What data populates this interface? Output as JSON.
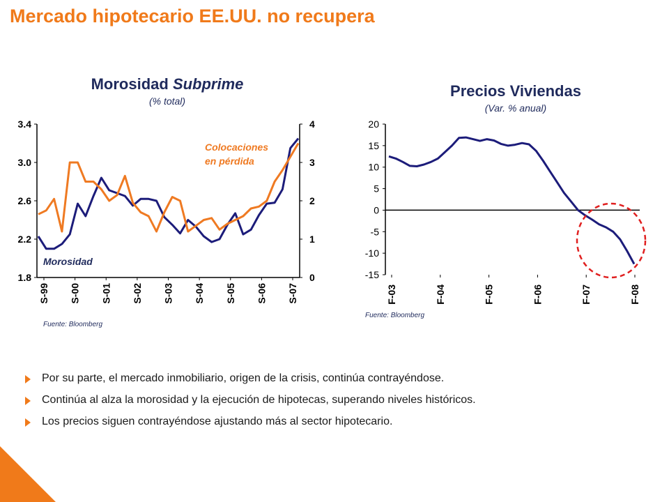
{
  "page": {
    "title": "Mercado hipotecario EE.UU. no recupera"
  },
  "colors": {
    "title": "#f07a1a",
    "navy": "#1f2a5c",
    "line_navy": "#1c1c7a",
    "line_orange": "#ef7a22",
    "circle": "#e02020"
  },
  "chart_data": [
    {
      "type": "line",
      "title": "Morosidad Subprime",
      "subtitle": "(% total)",
      "source": "Fuente: Bloomberg",
      "x_tick_labels": [
        "S-99",
        "S-00",
        "S-01",
        "S-02",
        "S-03",
        "S-04",
        "S-05",
        "S-06",
        "S-07"
      ],
      "y_left": {
        "ticks": [
          "1.8",
          "2.2",
          "2.6",
          "3.0",
          "3.4"
        ],
        "lim": [
          1.8,
          3.4
        ]
      },
      "y_right": {
        "ticks": [
          "0",
          "1",
          "2",
          "3",
          "4"
        ],
        "lim": [
          0,
          4
        ]
      },
      "annotations": {
        "morosidad": "Morosidad",
        "colocaciones_line1": "Colocaciones",
        "colocaciones_line2": "en pérdida"
      },
      "series": [
        {
          "name": "Morosidad",
          "axis": "left",
          "color": "#1c1c7a",
          "values": [
            2.23,
            2.1,
            2.1,
            2.15,
            2.25,
            2.57,
            2.44,
            2.65,
            2.84,
            2.71,
            2.68,
            2.65,
            2.55,
            2.62,
            2.62,
            2.6,
            2.43,
            2.35,
            2.26,
            2.4,
            2.33,
            2.23,
            2.17,
            2.2,
            2.35,
            2.47,
            2.25,
            2.3,
            2.45,
            2.57,
            2.58,
            2.72,
            3.15,
            3.25
          ]
        },
        {
          "name": "Colocaciones en pérdida",
          "axis": "right",
          "color": "#ef7a22",
          "values": [
            1.65,
            1.75,
            2.05,
            1.2,
            3.0,
            3.0,
            2.5,
            2.5,
            2.3,
            2.0,
            2.15,
            2.65,
            1.95,
            1.7,
            1.6,
            1.2,
            1.7,
            2.1,
            2.0,
            1.2,
            1.35,
            1.5,
            1.55,
            1.25,
            1.4,
            1.5,
            1.6,
            1.8,
            1.85,
            2.0,
            2.5,
            2.8,
            3.15,
            3.5
          ]
        }
      ]
    },
    {
      "type": "line",
      "title": "Precios Viviendas",
      "subtitle": "(Var. % anual)",
      "source": "Fuente: Bloomberg",
      "x_tick_labels": [
        "F-03",
        "F-04",
        "F-05",
        "F-06",
        "F-07",
        "F-08"
      ],
      "y": {
        "ticks": [
          "20",
          "15",
          "10",
          "5",
          "0",
          "-5",
          "-10",
          "-15"
        ],
        "lim": [
          -15,
          20
        ]
      },
      "highlight": "circled final decline",
      "series": [
        {
          "name": "Precios Viviendas",
          "color": "#1c1c7a",
          "values": [
            12.5,
            12.0,
            11.2,
            10.3,
            10.2,
            10.6,
            11.2,
            12.0,
            13.5,
            15.0,
            16.8,
            16.9,
            16.5,
            16.1,
            16.5,
            16.2,
            15.4,
            15.0,
            15.2,
            15.6,
            15.3,
            13.8,
            11.5,
            9.0,
            6.5,
            4.0,
            2.0,
            0.0,
            -1.2,
            -2.2,
            -3.3,
            -4.0,
            -5.0,
            -6.8,
            -9.5,
            -12.5
          ]
        }
      ]
    }
  ],
  "bullets": [
    "Por su parte, el mercado inmobiliario, origen de la crisis, continúa contrayéndose.",
    "Continúa al alza la morosidad y la ejecución de hipotecas, superando niveles históricos.",
    "Los precios siguen contrayéndose ajustando más al sector hipotecario."
  ]
}
